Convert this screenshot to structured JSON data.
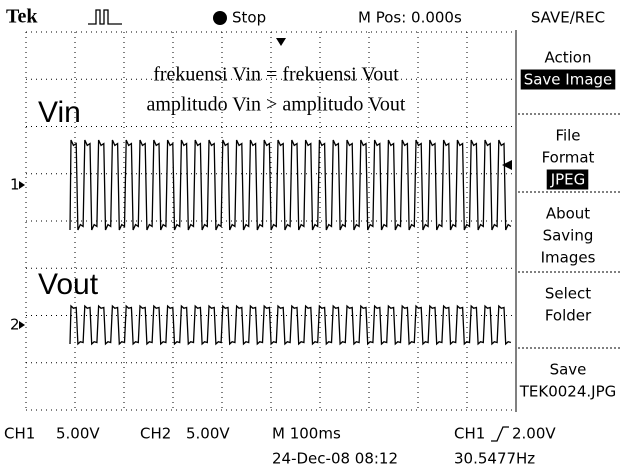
{
  "header": {
    "brand": "Tek",
    "status": "Stop",
    "position": "M Pos: 0.000s",
    "menu_title": "SAVE/REC"
  },
  "screen": {
    "annotations": [
      "frekuensi Vin = frekuensi Vout",
      "amplitudo Vin > amplitudo Vout"
    ],
    "traces": [
      {
        "label": "Vin",
        "marker": "1"
      },
      {
        "label": "Vout",
        "marker": "2"
      }
    ]
  },
  "menu": [
    {
      "lines": [
        "Action"
      ],
      "value": "Save Image"
    },
    {
      "lines": [
        "File",
        "Format"
      ],
      "value": "JPEG"
    },
    {
      "lines": [
        "About",
        "Saving",
        "Images"
      ]
    },
    {
      "lines": [
        "Select",
        "Folder"
      ]
    },
    {
      "lines": [
        "Save",
        "TEK0024.JPG"
      ]
    }
  ],
  "footer": {
    "ch1": "CH1",
    "ch1_scale": "5.00V",
    "ch2": "CH2",
    "ch2_scale": "5.00V",
    "timebase": "M 100ms",
    "trigger_source": "CH1",
    "trigger_level": "2.00V",
    "date": "24-Dec-08 08:12",
    "frequency": "30.5477Hz"
  }
}
